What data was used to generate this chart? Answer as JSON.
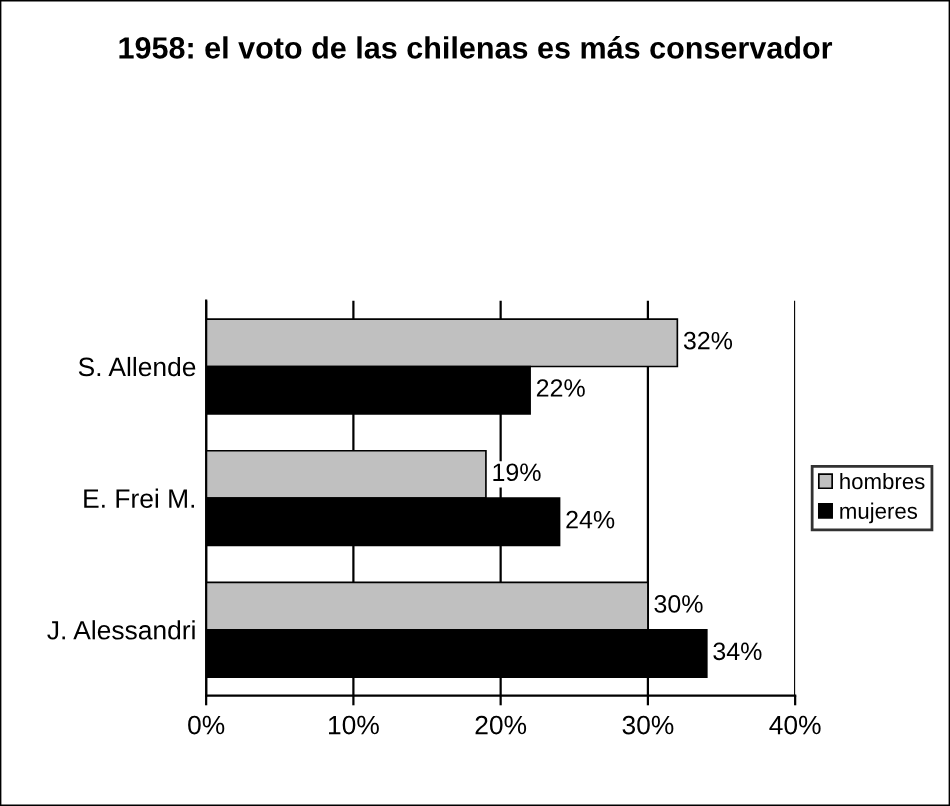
{
  "chart_data": {
    "type": "bar",
    "orientation": "horizontal",
    "title": "1958: el voto de las chilenas es más conservador",
    "categories": [
      "S. Allende",
      "E. Frei M.",
      "J. Alessandri"
    ],
    "series": [
      {
        "name": "hombres",
        "color": "#c0c0c0",
        "values": [
          32,
          19,
          30
        ],
        "value_labels": [
          "32%",
          "19%",
          "30%"
        ]
      },
      {
        "name": "mujeres",
        "color": "#000000",
        "values": [
          22,
          24,
          34
        ],
        "value_labels": [
          "22%",
          "24%",
          "34%"
        ]
      }
    ],
    "xlim": [
      0,
      40
    ],
    "xticks": [
      {
        "value": 0,
        "label": "0%"
      },
      {
        "value": 10,
        "label": "10%"
      },
      {
        "value": 20,
        "label": "20%"
      },
      {
        "value": 30,
        "label": "30%"
      },
      {
        "value": 40,
        "label": "40%"
      }
    ],
    "grid": "x",
    "legend": "right"
  }
}
